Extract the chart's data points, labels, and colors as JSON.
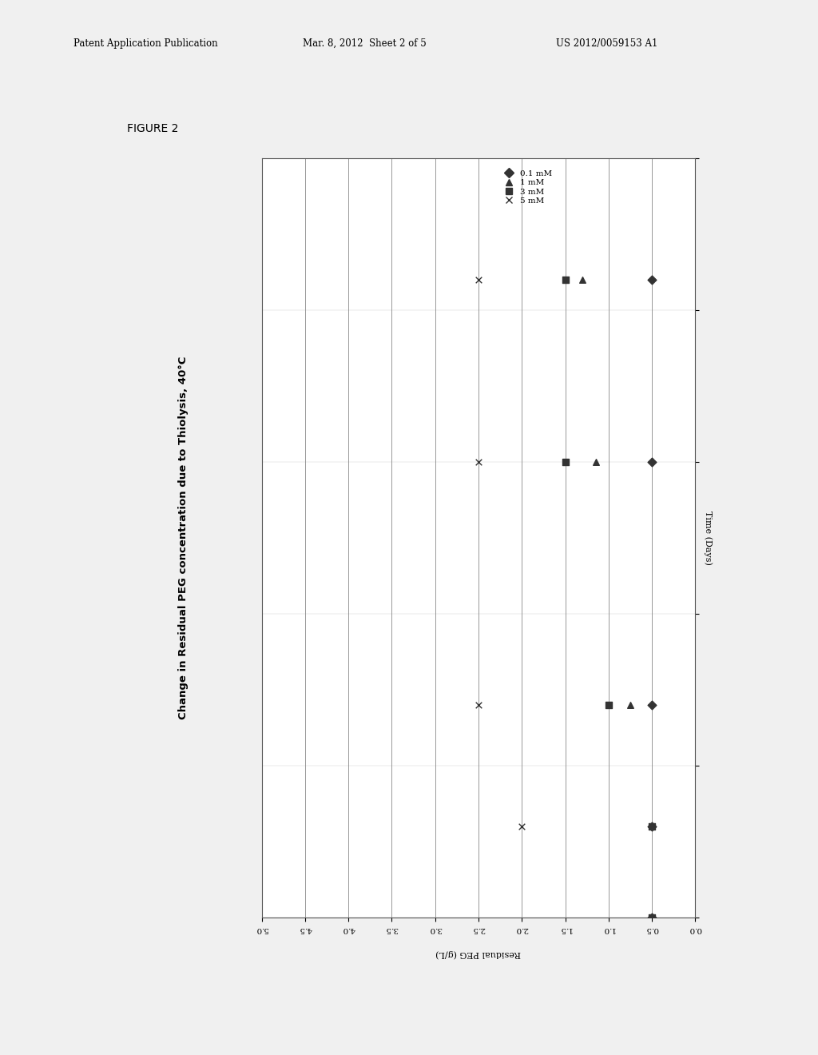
{
  "title_left": "Change in Residual PEG concentration due to Thiolysis, 40°C",
  "xlabel": "Residual PEG (g/L)",
  "ylabel_right": "Time (Days)",
  "figure_label": "FIGURE 2",
  "header_left": "Patent Application Publication",
  "header_center": "Mar. 8, 2012  Sheet 2 of 5",
  "header_right": "US 2012/0059153 A1",
  "xlim": [
    0,
    5
  ],
  "ylim": [
    0,
    25
  ],
  "xticks": [
    0,
    0.5,
    1.0,
    1.5,
    2.0,
    2.5,
    3.0,
    3.5,
    4.0,
    4.5,
    5.0
  ],
  "yticks": [
    0,
    5,
    10,
    15,
    20,
    25
  ],
  "plot_data": {
    "0.1 mM": {
      "marker": "D",
      "times": [
        0,
        3,
        7,
        15,
        21
      ],
      "peg": [
        0.5,
        0.5,
        0.5,
        0.5,
        0.5
      ]
    },
    "1 mM": {
      "marker": "^",
      "times": [
        0,
        3,
        7,
        15,
        21
      ],
      "peg": [
        0.5,
        0.5,
        0.75,
        1.15,
        1.3
      ]
    },
    "3 mM": {
      "marker": "s",
      "times": [
        0,
        3,
        7,
        15,
        21
      ],
      "peg": [
        0.5,
        0.5,
        1.0,
        1.5,
        1.5
      ]
    },
    "5 mM": {
      "marker": "x",
      "times": [
        0,
        3,
        7,
        15,
        21
      ],
      "peg": [
        0.5,
        2.0,
        2.5,
        2.5,
        2.5
      ]
    }
  },
  "background_color": "#f0f0f0",
  "plot_bg_color": "#ffffff",
  "marker_color": "#333333",
  "legend_order": [
    "0.1 mM",
    "1 mM",
    "3 mM",
    "5 mM"
  ],
  "legend_markers": [
    "D",
    "^",
    "s",
    "x"
  ]
}
